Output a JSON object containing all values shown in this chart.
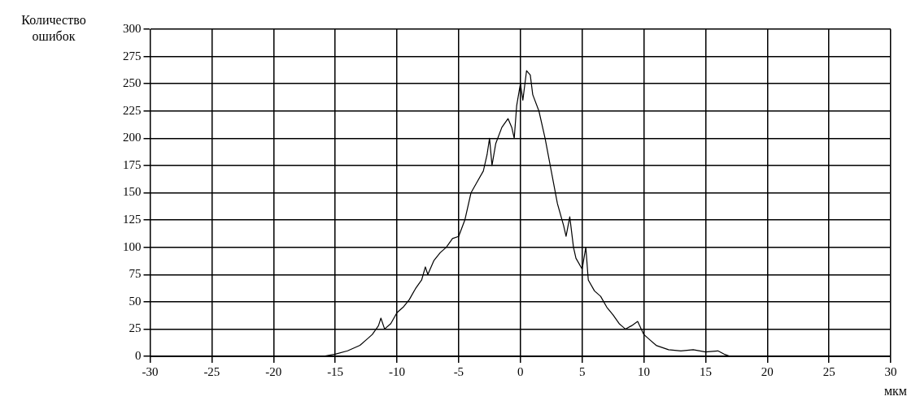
{
  "chart_data": {
    "type": "line",
    "ylabel": "Количество ошибок",
    "xlabel": "мкм",
    "x": [
      -16,
      -15,
      -14,
      -13,
      -12.5,
      -12,
      -11.5,
      -11.3,
      -11,
      -10.5,
      -10,
      -9.5,
      -9,
      -8.5,
      -8,
      -7.7,
      -7.5,
      -7,
      -6.5,
      -6,
      -5.5,
      -5,
      -4.5,
      -4,
      -3.5,
      -3,
      -2.7,
      -2.5,
      -2.3,
      -2,
      -1.5,
      -1,
      -0.7,
      -0.5,
      -0.3,
      0,
      0.2,
      0.5,
      0.8,
      1,
      1.5,
      2,
      2.5,
      3,
      3.5,
      3.7,
      4,
      4.3,
      4.5,
      5,
      5.3,
      5.5,
      6,
      6.5,
      7,
      7.5,
      8,
      8.5,
      9,
      9.5,
      10,
      10.5,
      11,
      12,
      13,
      14,
      15,
      16,
      16.5,
      17
    ],
    "series": [
      {
        "color": "#000000",
        "values": [
          0,
          2,
          5,
          10,
          15,
          20,
          28,
          35,
          25,
          30,
          40,
          45,
          52,
          62,
          70,
          82,
          75,
          88,
          95,
          100,
          108,
          110,
          125,
          150,
          160,
          170,
          185,
          200,
          175,
          195,
          210,
          218,
          210,
          200,
          230,
          250,
          235,
          262,
          258,
          240,
          225,
          200,
          170,
          140,
          120,
          110,
          128,
          100,
          90,
          80,
          100,
          70,
          60,
          55,
          45,
          38,
          30,
          25,
          28,
          32,
          20,
          15,
          10,
          6,
          5,
          6,
          4,
          5,
          2,
          0
        ]
      }
    ],
    "xlim": [
      -30,
      30
    ],
    "xticks": [
      -30,
      -25,
      -20,
      -15,
      -10,
      -5,
      0,
      5,
      10,
      15,
      20,
      25,
      30
    ],
    "ylim": [
      0,
      300
    ],
    "yticks": [
      0,
      25,
      50,
      75,
      100,
      125,
      150,
      175,
      200,
      225,
      250,
      275,
      300
    ],
    "grid": true,
    "marker": "none",
    "line_style": "solid"
  }
}
